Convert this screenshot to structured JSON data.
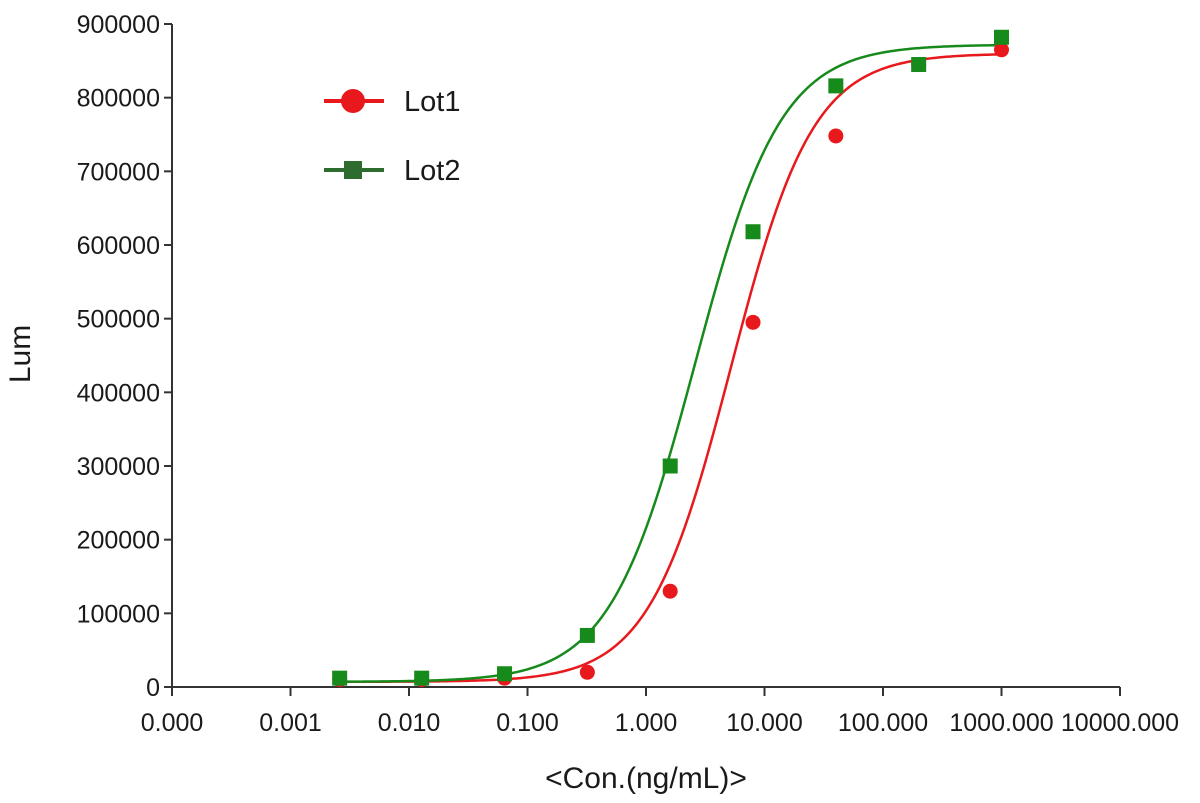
{
  "chart_data": {
    "type": "scatter",
    "title": "",
    "xlabel": "<Con.(ng/mL)>",
    "ylabel": "Lum",
    "x_scale": "log",
    "xlim": [
      0.0001,
      10000
    ],
    "ylim": [
      0,
      900000
    ],
    "grid": false,
    "legend_position": "top-left",
    "x_ticks": [
      0.0001,
      0.001,
      0.01,
      0.1,
      1,
      10,
      100,
      1000,
      10000
    ],
    "x_tick_labels": [
      "0.000",
      "0.001",
      "0.010",
      "0.100",
      "1.000",
      "10.000",
      "100.000",
      "1000.000",
      "10000.000"
    ],
    "y_ticks": [
      0,
      100000,
      200000,
      300000,
      400000,
      500000,
      600000,
      700000,
      800000,
      900000
    ],
    "y_tick_labels": [
      "0",
      "100000",
      "200000",
      "300000",
      "400000",
      "500000",
      "600000",
      "700000",
      "800000",
      "900000"
    ],
    "series": [
      {
        "name": "Lot1",
        "color": "#e8191c",
        "marker": "circle",
        "x": [
          0.0026,
          0.0128,
          0.064,
          0.32,
          1.6,
          8,
          40,
          200,
          1000
        ],
        "y": [
          10000,
          10000,
          12000,
          20000,
          130000,
          495000,
          748000,
          845000,
          865000
        ],
        "fit": {
          "bottom": 7000,
          "top": 860000,
          "ec50": 5.2,
          "hill": 1.25,
          "x_start": 0.0026,
          "x_end": 1000
        }
      },
      {
        "name": "Lot2",
        "color": "#178a1c",
        "legend_color": "#2e6b2f",
        "marker": "square",
        "x": [
          0.0026,
          0.0128,
          0.064,
          0.32,
          1.6,
          8,
          40,
          200,
          1000
        ],
        "y": [
          12000,
          12000,
          18000,
          70000,
          300000,
          618000,
          816000,
          845000,
          882000
        ],
        "fit": {
          "bottom": 7000,
          "top": 872000,
          "ec50": 2.6,
          "hill": 1.2,
          "x_start": 0.0026,
          "x_end": 1000
        }
      }
    ]
  }
}
